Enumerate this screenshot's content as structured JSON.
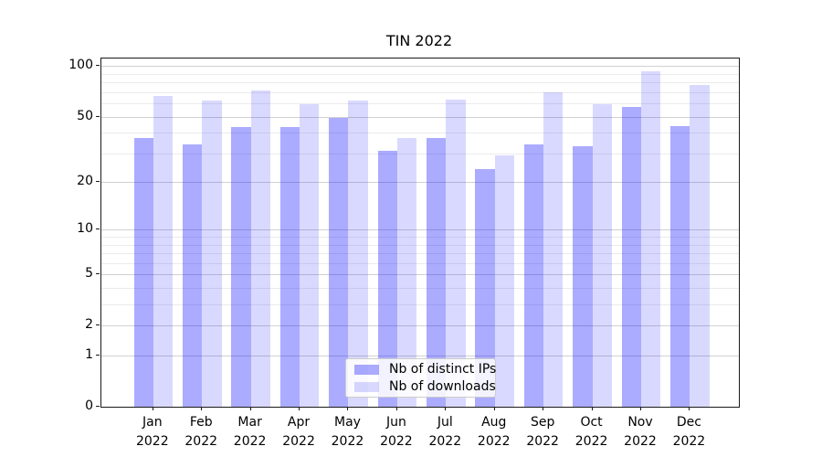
{
  "chart_data": {
    "type": "bar",
    "title": "TIN 2022",
    "categories": [
      "Jan",
      "Feb",
      "Mar",
      "Apr",
      "May",
      "Jun",
      "Jul",
      "Aug",
      "Sep",
      "Oct",
      "Nov",
      "Dec"
    ],
    "year_label": "2022",
    "series": [
      {
        "name": "Nb of distinct IPs",
        "color": "rgba(0,0,255,0.33)",
        "values": [
          37,
          34,
          43,
          43,
          49,
          31,
          37,
          24,
          34,
          33,
          57,
          44
        ]
      },
      {
        "name": "Nb of downloads",
        "color": "rgba(0,0,255,0.15)",
        "values": [
          66,
          62,
          72,
          59,
          62,
          37,
          63,
          29,
          70,
          59,
          93,
          77
        ]
      }
    ],
    "xlabel": "",
    "ylabel": "",
    "yscale": "log1p",
    "ylim": [
      0,
      111
    ],
    "y_ticks_major": [
      0,
      1,
      2,
      5,
      10,
      20,
      50,
      100
    ],
    "y_ticks_minor": [
      3,
      4,
      6,
      7,
      8,
      9,
      30,
      40,
      60,
      70,
      80,
      90
    ],
    "grid": true,
    "legend_position": "lower center"
  }
}
